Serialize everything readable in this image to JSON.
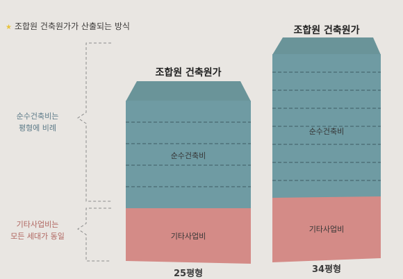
{
  "header": {
    "bullet_icon": "star-icon",
    "text": "조합원 건축원가가 산출되는 방식"
  },
  "side_notes": {
    "top": {
      "line1": "순수건축비는",
      "line2": "평형에 비례"
    },
    "bottom": {
      "line1": "기타사업비는",
      "line2": "모든 세대가 동일"
    }
  },
  "bars": [
    {
      "title": "조합원 건축원가",
      "top_label": "순수건축비",
      "bottom_label": "기타사업비",
      "x_label": "25평형"
    },
    {
      "title": "조합원 건축원가",
      "top_label": "순수건축비",
      "bottom_label": "기타사업비",
      "x_label": "34평형"
    }
  ],
  "colors": {
    "construction": "#6f9ba3",
    "roof": "#6a9499",
    "other": "#d48b87",
    "note_top": "#5c7a88",
    "note_bottom": "#b06660"
  }
}
